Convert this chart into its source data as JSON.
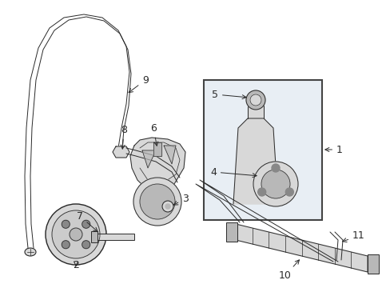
{
  "bg_color": "#ffffff",
  "line_color": "#2a2a2a",
  "fill_light": "#d8d8d8",
  "fill_mid": "#b8b8b8",
  "fill_dark": "#888888",
  "box_fill": "#e8eef4",
  "box_edge": "#444444",
  "font_size": 9
}
